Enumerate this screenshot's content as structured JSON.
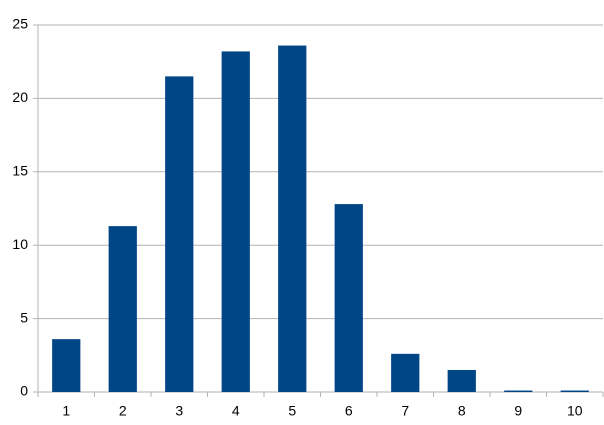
{
  "chart_data": {
    "type": "bar",
    "categories": [
      "1",
      "2",
      "3",
      "4",
      "5",
      "6",
      "7",
      "8",
      "9",
      "10"
    ],
    "values": [
      3.6,
      11.3,
      21.5,
      23.2,
      23.6,
      12.8,
      2.6,
      1.5,
      0.1,
      0.1
    ],
    "color": "#004586",
    "ylim": [
      0,
      25
    ],
    "yticks": [
      0,
      5,
      10,
      15,
      20,
      25
    ],
    "grid": true
  }
}
